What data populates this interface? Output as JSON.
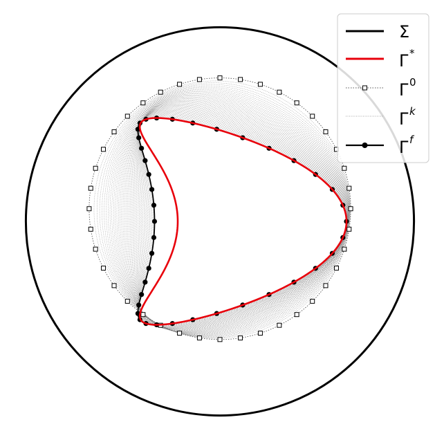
{
  "chart_data": {
    "type": "line",
    "title": "",
    "xlabel": "",
    "ylabel": "",
    "xlim": [
      -1.0,
      1.0
    ],
    "ylim": [
      -1.0,
      1.0
    ],
    "axes_visible": false,
    "grid": false,
    "legend_position": "top-right",
    "legend": [
      {
        "symbol": "Σ",
        "sup": ""
      },
      {
        "symbol": "Γ",
        "sup": "*"
      },
      {
        "symbol": "Γ",
        "sup": "0"
      },
      {
        "symbol": "Γ",
        "sup": "k"
      },
      {
        "symbol": "Γ",
        "sup": "f"
      }
    ],
    "colors": {
      "sigma": "#000000",
      "gamma_star": "#e8000b",
      "gamma_0": "#555555",
      "gamma_k": "#8a8a8a",
      "gamma_f": "#000000"
    },
    "series": [
      {
        "key": "sigma",
        "shape": "circle",
        "center": [
          0.0,
          0.0
        ],
        "radius": 0.92
      },
      {
        "key": "gamma_0",
        "shape": "circle",
        "center": [
          0.0,
          0.06
        ],
        "radius": 0.62,
        "markers": 40
      },
      {
        "key": "gamma_k",
        "shape": "interpolated-family",
        "count": 40
      },
      {
        "key": "gamma_f",
        "shape": "kite",
        "markers": 40
      },
      {
        "key": "gamma_star",
        "shape": "kite"
      }
    ]
  }
}
